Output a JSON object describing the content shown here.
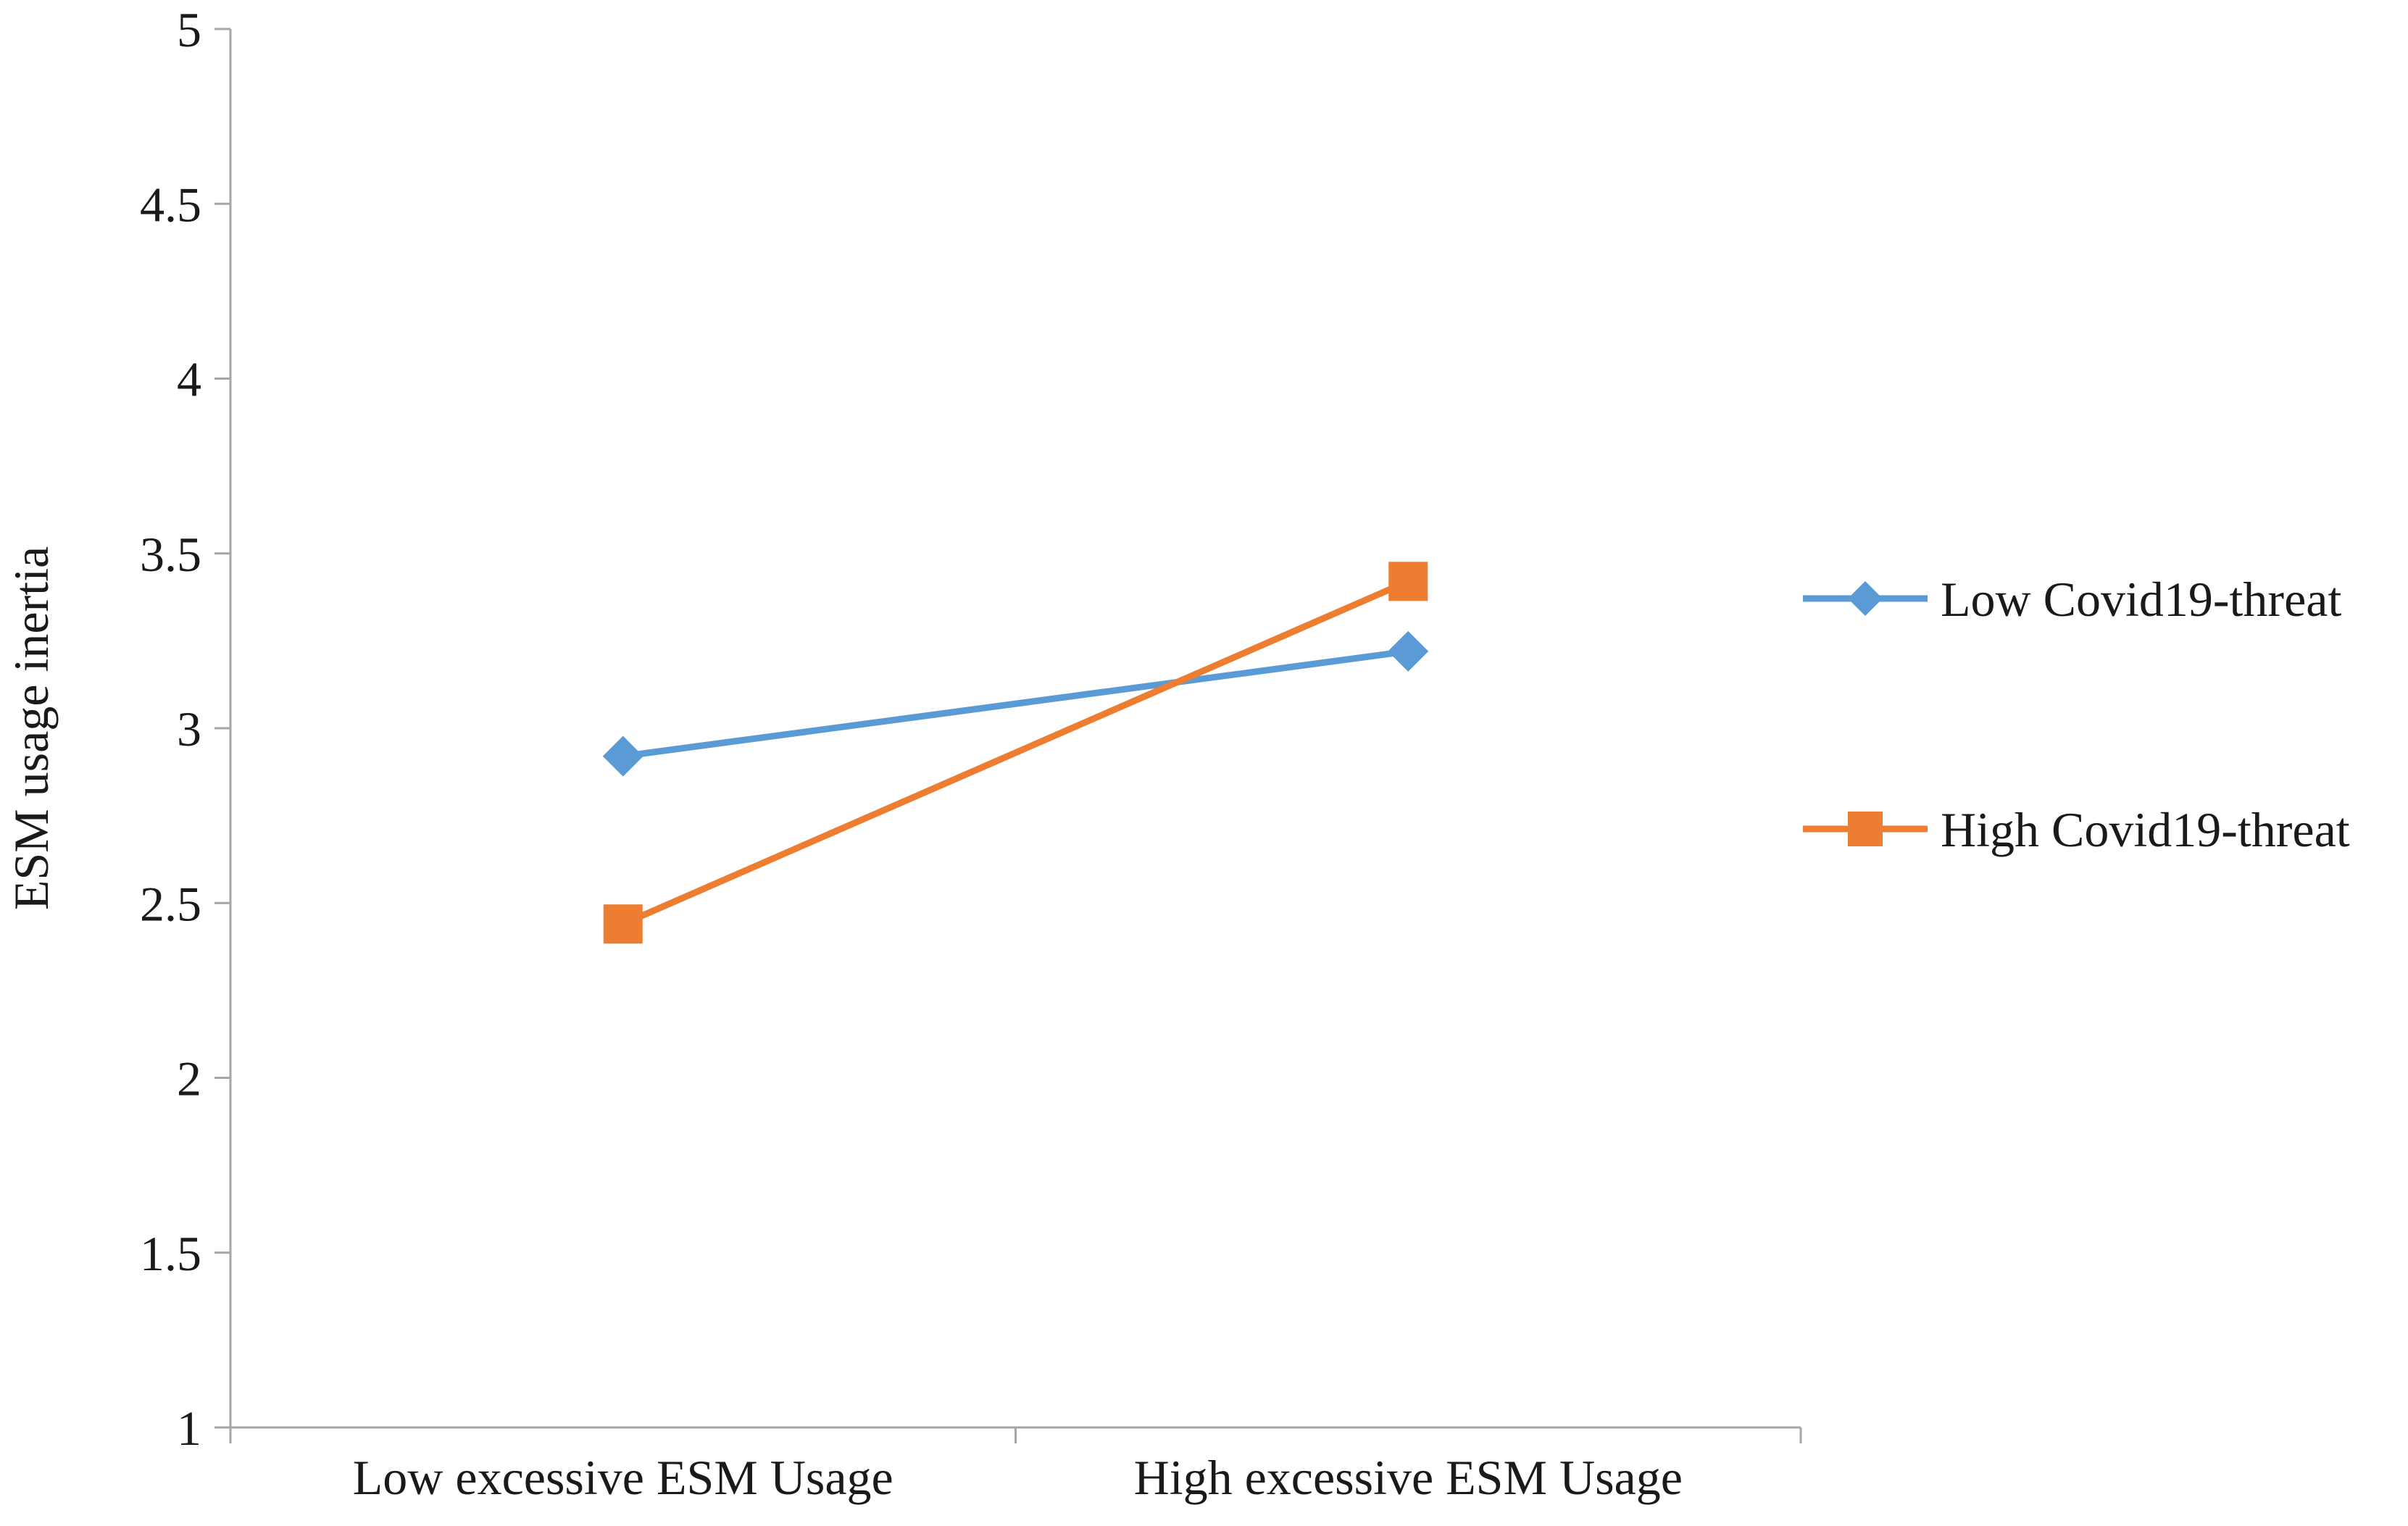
{
  "chart_data": {
    "type": "line",
    "categories": [
      "Low excessive ESM Usage",
      "High excessive ESM Usage"
    ],
    "series": [
      {
        "name": "Low Covid19-threat",
        "values": [
          2.92,
          3.22
        ],
        "color": "#5b9bd5",
        "marker": "diamond"
      },
      {
        "name": "High Covid19-threat",
        "values": [
          2.44,
          3.42
        ],
        "color": "#ed7d31",
        "marker": "square"
      }
    ],
    "ylabel": "ESM usage inertia",
    "xlabel": "",
    "ylim": [
      1,
      5
    ],
    "yticks": [
      "1",
      "1.5",
      "2",
      "2.5",
      "3",
      "3.5",
      "4",
      "4.5",
      "5"
    ],
    "grid": false,
    "legend_position": "right"
  }
}
